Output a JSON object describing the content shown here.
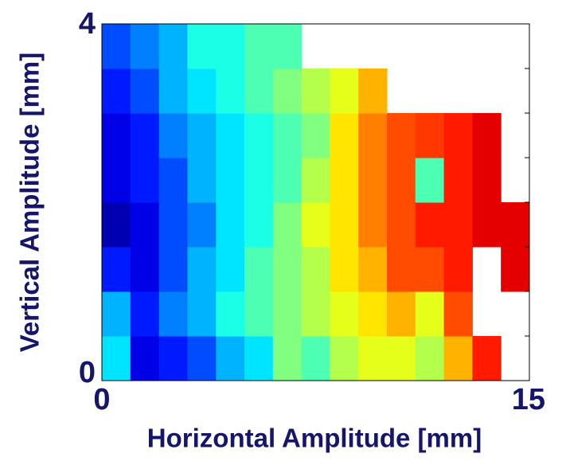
{
  "chart_data": {
    "type": "heatmap",
    "xlabel": "Horizontal Amplitude [mm]",
    "ylabel": "Vertical Amplitude [mm]",
    "xlim": [
      0,
      15
    ],
    "ylim": [
      0,
      4
    ],
    "xticks": [
      0,
      15
    ],
    "yticks": [
      0,
      4
    ],
    "yminor_ticks": [
      0.5,
      1,
      1.5,
      2,
      2.5,
      3,
      3.5
    ],
    "colormap": "jet",
    "x_edges": [
      0,
      1,
      2,
      3,
      4,
      5,
      6,
      7,
      8,
      9,
      10,
      11,
      12,
      13,
      14,
      15
    ],
    "y_edges": [
      0,
      0.5,
      1,
      1.5,
      2,
      2.5,
      3,
      3.5,
      4
    ],
    "z": [
      [
        0.35,
        0.1,
        0.15,
        0.2,
        0.3,
        0.35,
        0.5,
        0.45,
        0.55,
        0.6,
        0.6,
        0.55,
        0.7,
        0.85,
        null
      ],
      [
        0.3,
        0.15,
        0.25,
        0.3,
        0.4,
        0.45,
        0.5,
        0.55,
        0.6,
        0.65,
        0.7,
        0.6,
        0.8,
        null,
        null
      ],
      [
        0.15,
        0.1,
        0.2,
        0.3,
        0.35,
        0.45,
        0.5,
        0.55,
        0.65,
        0.7,
        0.8,
        0.8,
        0.85,
        null,
        0.9
      ],
      [
        0.05,
        0.1,
        0.2,
        0.25,
        0.35,
        0.4,
        0.5,
        0.6,
        0.65,
        0.75,
        0.8,
        0.85,
        0.85,
        0.9,
        0.9
      ],
      [
        0.1,
        0.15,
        0.2,
        0.3,
        0.35,
        0.4,
        0.45,
        0.55,
        0.65,
        0.75,
        0.8,
        0.45,
        0.85,
        0.9,
        null
      ],
      [
        0.1,
        0.15,
        0.25,
        0.3,
        0.35,
        0.4,
        0.45,
        0.5,
        0.65,
        0.75,
        0.8,
        0.82,
        0.85,
        0.9,
        null
      ],
      [
        0.15,
        0.2,
        0.3,
        0.35,
        0.4,
        0.45,
        0.5,
        0.55,
        0.6,
        0.7,
        null,
        null,
        null,
        null,
        null
      ],
      [
        0.2,
        0.25,
        0.3,
        0.4,
        0.4,
        0.45,
        0.45,
        null,
        null,
        null,
        null,
        null,
        null,
        null,
        null
      ]
    ]
  }
}
